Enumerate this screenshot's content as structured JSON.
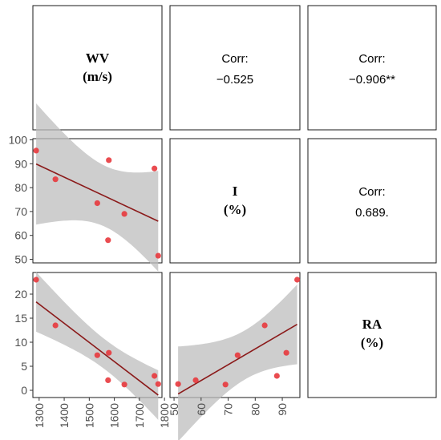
{
  "chart_data": {
    "type": "scatter-matrix",
    "variables": [
      {
        "key": "WV",
        "name": "WV",
        "unit": "(m/s)"
      },
      {
        "key": "I",
        "name": "I",
        "unit": "(%)"
      },
      {
        "key": "RA",
        "name": "RA",
        "unit": "(%)"
      }
    ],
    "observations": {
      "WV": [
        1288,
        1365,
        1532,
        1575,
        1578,
        1640,
        1760,
        1775
      ],
      "I": [
        95.5,
        83.5,
        73.5,
        58.0,
        91.5,
        69.0,
        88.0,
        51.5
      ],
      "RA": [
        23.0,
        13.5,
        7.3,
        2.1,
        7.8,
        1.2,
        3.0,
        1.3
      ]
    },
    "correlations": [
      {
        "pair": [
          "WV",
          "I"
        ],
        "title": "Corr:",
        "value": "−0.525"
      },
      {
        "pair": [
          "WV",
          "RA"
        ],
        "title": "Corr:",
        "value": "−0.906**"
      },
      {
        "pair": [
          "I",
          "RA"
        ],
        "title": "Corr:",
        "value": "0.689."
      }
    ],
    "axes": {
      "WV": {
        "lim": [
          1275,
          1790
        ],
        "ticks": [
          1300,
          1400,
          1500,
          1600,
          1700,
          1800
        ]
      },
      "I": {
        "lim": [
          48.5,
          100.5
        ],
        "ticks": [
          50,
          60,
          70,
          80,
          90,
          100
        ]
      },
      "RA": {
        "lim": [
          -1.5,
          24.5
        ],
        "ticks": [
          0,
          5,
          10,
          15,
          20
        ]
      },
      "I_bottom": {
        "lim": [
          48.5,
          96.5
        ],
        "ticks": [
          50,
          60,
          70,
          80,
          90
        ]
      }
    },
    "fit": "linear regression with confidence band",
    "colors": {
      "points": "#e8393d",
      "fit_line": "#8b1a1a",
      "band": "#bdbdbd"
    }
  }
}
